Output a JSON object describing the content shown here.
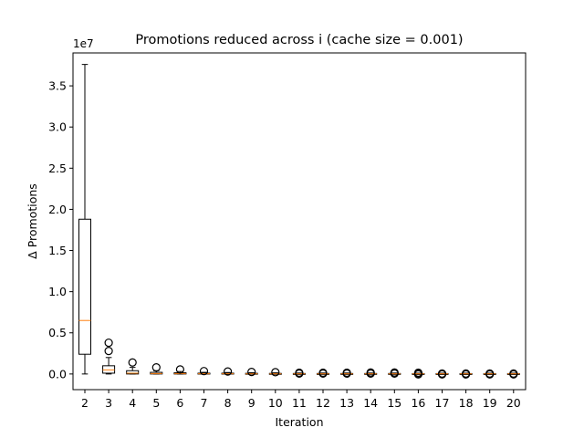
{
  "chart_data": {
    "type": "box",
    "title": "Promotions reduced across i (cache size = 0.001)",
    "xlabel": "Iteration",
    "ylabel": "Δ Promotions",
    "y_offset_label": "1e7",
    "y_scale": 10000000,
    "ylim": [
      -0.19,
      3.9
    ],
    "yticks": [
      0.0,
      0.5,
      1.0,
      1.5,
      2.0,
      2.5,
      3.0,
      3.5
    ],
    "ytick_labels": [
      "0.0",
      "0.5",
      "1.0",
      "1.5",
      "2.0",
      "2.5",
      "3.0",
      "3.5"
    ],
    "categories": [
      "2",
      "3",
      "4",
      "5",
      "6",
      "7",
      "8",
      "9",
      "10",
      "11",
      "12",
      "13",
      "14",
      "15",
      "16",
      "17",
      "18",
      "19",
      "20"
    ],
    "grid": false,
    "colors": {
      "box": "#000000",
      "median": "#ff7f0e",
      "flier": "#000000"
    },
    "boxes": [
      {
        "whisker_low": 0.0,
        "q1": 0.24,
        "median": 0.65,
        "q3": 1.88,
        "whisker_high": 3.76,
        "fliers": []
      },
      {
        "whisker_low": 0.0,
        "q1": 0.01,
        "median": 0.05,
        "q3": 0.1,
        "whisker_high": 0.2,
        "fliers": [
          0.28,
          0.38
        ]
      },
      {
        "whisker_low": 0.0,
        "q1": 0.0,
        "median": 0.01,
        "q3": 0.04,
        "whisker_high": 0.08,
        "fliers": [
          0.14
        ]
      },
      {
        "whisker_low": 0.0,
        "q1": 0.0,
        "median": 0.005,
        "q3": 0.02,
        "whisker_high": 0.04,
        "fliers": [
          0.08
        ]
      },
      {
        "whisker_low": 0.0,
        "q1": 0.0,
        "median": 0.005,
        "q3": 0.015,
        "whisker_high": 0.03,
        "fliers": [
          0.055
        ]
      },
      {
        "whisker_low": 0.0,
        "q1": 0.0,
        "median": 0.003,
        "q3": 0.01,
        "whisker_high": 0.02,
        "fliers": [
          0.035
        ]
      },
      {
        "whisker_low": 0.0,
        "q1": 0.0,
        "median": 0.003,
        "q3": 0.01,
        "whisker_high": 0.018,
        "fliers": [
          0.03
        ]
      },
      {
        "whisker_low": 0.0,
        "q1": 0.0,
        "median": 0.002,
        "q3": 0.008,
        "whisker_high": 0.015,
        "fliers": [
          0.025
        ]
      },
      {
        "whisker_low": 0.0,
        "q1": 0.0,
        "median": 0.002,
        "q3": 0.007,
        "whisker_high": 0.014,
        "fliers": [
          0.022
        ]
      },
      {
        "whisker_low": 0.0,
        "q1": 0.0,
        "median": 0.002,
        "q3": 0.006,
        "whisker_high": 0.012,
        "fliers": [
          0.005,
          0.015
        ]
      },
      {
        "whisker_low": 0.0,
        "q1": 0.0,
        "median": 0.002,
        "q3": 0.006,
        "whisker_high": 0.012,
        "fliers": [
          0.005,
          0.015
        ]
      },
      {
        "whisker_low": 0.0,
        "q1": 0.0,
        "median": 0.002,
        "q3": 0.006,
        "whisker_high": 0.012,
        "fliers": [
          0.005,
          0.015
        ]
      },
      {
        "whisker_low": 0.0,
        "q1": 0.0,
        "median": 0.002,
        "q3": 0.006,
        "whisker_high": 0.012,
        "fliers": [
          0.005,
          0.018
        ]
      },
      {
        "whisker_low": 0.0,
        "q1": 0.0,
        "median": 0.002,
        "q3": 0.006,
        "whisker_high": 0.012,
        "fliers": [
          0.005,
          0.018
        ]
      },
      {
        "whisker_low": 0.0,
        "q1": 0.0,
        "median": 0.002,
        "q3": 0.005,
        "whisker_high": 0.01,
        "fliers": [
          -0.005,
          0.005,
          0.015
        ]
      },
      {
        "whisker_low": 0.0,
        "q1": 0.0,
        "median": 0.002,
        "q3": 0.005,
        "whisker_high": 0.01,
        "fliers": [
          -0.005,
          0.005
        ]
      },
      {
        "whisker_low": 0.0,
        "q1": 0.0,
        "median": 0.002,
        "q3": 0.005,
        "whisker_high": 0.01,
        "fliers": [
          -0.005,
          0.005
        ]
      },
      {
        "whisker_low": 0.0,
        "q1": 0.0,
        "median": 0.002,
        "q3": 0.005,
        "whisker_high": 0.01,
        "fliers": [
          -0.005,
          0.005
        ]
      },
      {
        "whisker_low": 0.0,
        "q1": 0.0,
        "median": 0.002,
        "q3": 0.005,
        "whisker_high": 0.01,
        "fliers": [
          -0.005,
          0.005
        ]
      }
    ]
  }
}
